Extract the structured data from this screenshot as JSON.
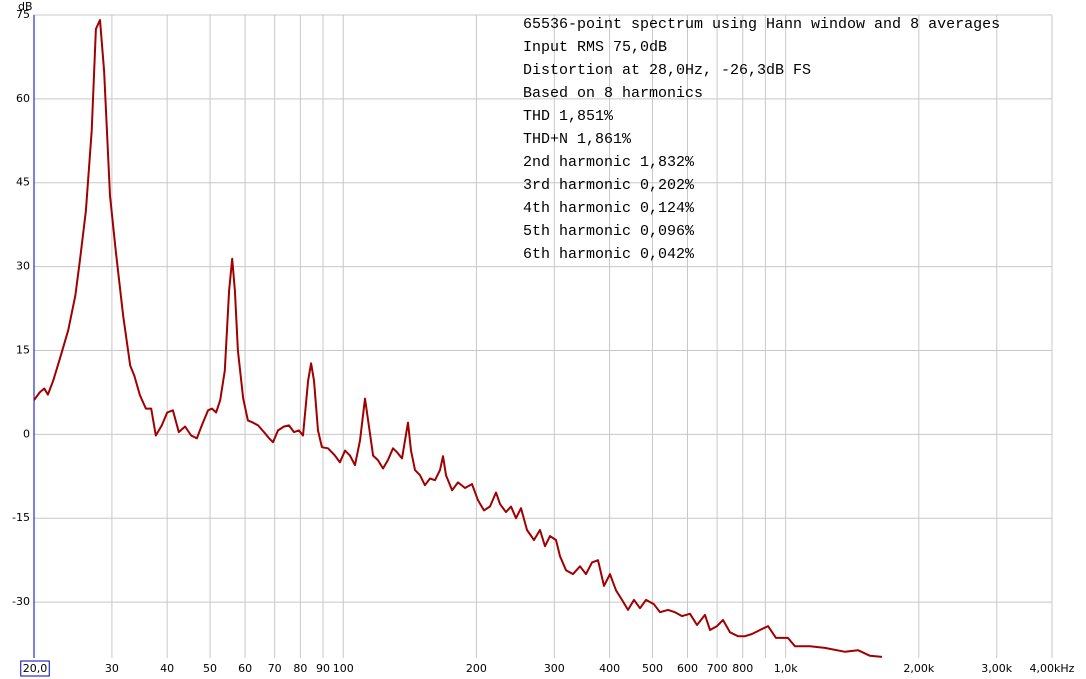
{
  "chart_data": {
    "type": "line",
    "y_axis_label": "dB",
    "annotations": [
      "65536-point spectrum using Hann window and 8 averages",
      "Input RMS 75,0dB",
      "Distortion at 28,0Hz, -26,3dB FS",
      "Based on 8 harmonics",
      "THD 1,851%",
      "THD+N 1,861%",
      "2nd harmonic 1,832%",
      "3rd harmonic 0,202%",
      "4th harmonic 0,124%",
      "5th harmonic 0,096%",
      "6th harmonic 0,042%"
    ],
    "x_scale": "log",
    "xlim": [
      20,
      4000
    ],
    "ylim": [
      -40,
      75
    ],
    "grid": true,
    "xticks": [
      {
        "value": 20,
        "label": "20,0"
      },
      30,
      40,
      50,
      60,
      70,
      80,
      90,
      100,
      200,
      300,
      400,
      500,
      600,
      700,
      800,
      {
        "value": 1000,
        "label": "1,0k"
      },
      {
        "value": 2000,
        "label": "2,00k"
      },
      {
        "value": 3000,
        "label": "3,00k"
      },
      {
        "value": 4000,
        "label": "4,00kHz"
      }
    ],
    "x_minor_gridlines": [
      900
    ],
    "yticks": [
      -30,
      -15,
      0,
      15,
      30,
      45,
      60,
      75
    ],
    "x": [
      20,
      20.6,
      21.1,
      21.5,
      22.1,
      22.9,
      23.9,
      24.8,
      25.4,
      26.2,
      27.0,
      27.6,
      28.2,
      28.8,
      29.7,
      30.6,
      31.8,
      33.0,
      33.7,
      34.7,
      35.8,
      36.8,
      37.7,
      38.9,
      40.0,
      41.2,
      42.5,
      43.9,
      45.3,
      46.7,
      47.9,
      49.5,
      50.5,
      51.6,
      52.7,
      54.0,
      55.2,
      56.1,
      56.9,
      57.8,
      59.4,
      60.9,
      62.5,
      64.2,
      66.2,
      68.0,
      69.4,
      71.2,
      73.5,
      75.4,
      77.4,
      79.4,
      81.1,
      83.3,
      84.6,
      85.9,
      87.7,
      89.5,
      92.4,
      95.8,
      98.3,
      100.9,
      103.6,
      106.3,
      109.1,
      112,
      113.8,
      116.8,
      119.8,
      123,
      126.2,
      129.6,
      132.3,
      135.8,
      140.1,
      142.3,
      145.3,
      149.1,
      153,
      157.1,
      161.2,
      165.5,
      168.1,
      170.7,
      176.2,
      181.7,
      188.5,
      195.5,
      201.7,
      208.1,
      214.7,
      221.5,
      226.2,
      233.3,
      239.4,
      245.8,
      252.3,
      260.3,
      269.9,
      278.5,
      285.8,
      293.4,
      302.7,
      309,
      318.8,
      330.7,
      342.9,
      353.8,
      365,
      376.6,
      388.6,
      400.9,
      413.6,
      426.7,
      440.3,
      454.2,
      468.7,
      483.5,
      504.1,
      520.1,
      542.2,
      562.3,
      583.1,
      608,
      630.5,
      657.3,
      674.6,
      699.7,
      721.8,
      748.6,
      780.4,
      809.4,
      839.4,
      875.1,
      912.3,
      951.1,
      1012,
      1050,
      1135,
      1227,
      1362,
      1457,
      1551,
      1651
    ],
    "series": [
      {
        "color": "#a00000",
        "values": [
          6.1,
          7.5,
          8.2,
          7.1,
          9.6,
          13.6,
          18.6,
          24.8,
          31.1,
          40,
          54.3,
          72.5,
          74.1,
          65,
          42.7,
          32.9,
          21.3,
          12.3,
          10.5,
          7.0,
          4.6,
          4.6,
          -0.2,
          1.6,
          3.9,
          4.3,
          0.4,
          1.4,
          -0.2,
          -0.7,
          1.6,
          4.3,
          4.6,
          3.9,
          6.1,
          11.4,
          25.7,
          31.4,
          25.7,
          15,
          6.4,
          2.5,
          2.1,
          1.6,
          0.4,
          -0.7,
          -1.4,
          0.7,
          1.4,
          1.6,
          0.4,
          0.7,
          -0.2,
          9.6,
          12.7,
          9.6,
          0.7,
          -2.3,
          -2.5,
          -3.8,
          -5,
          -2.9,
          -3.8,
          -5.5,
          -1.1,
          6.4,
          2.5,
          -3.8,
          -4.6,
          -6.1,
          -4.6,
          -2.5,
          -3.2,
          -4.3,
          2.1,
          -2.9,
          -6.4,
          -7.3,
          -9.1,
          -7.9,
          -8.2,
          -6.4,
          -3.9,
          -7.3,
          -10,
          -8.6,
          -9.6,
          -8.9,
          -11.8,
          -13.6,
          -12.9,
          -10.4,
          -12.5,
          -13.9,
          -12.9,
          -15,
          -13.2,
          -17.1,
          -18.9,
          -17.1,
          -20,
          -18.2,
          -18.9,
          -21.8,
          -24.3,
          -25,
          -23.6,
          -25,
          -22.9,
          -22.5,
          -27.1,
          -25,
          -27.9,
          -29.6,
          -31.4,
          -29.6,
          -31.1,
          -29.6,
          -30.4,
          -31.8,
          -31.4,
          -31.8,
          -32.5,
          -32.1,
          -34.1,
          -32.3,
          -35,
          -34.3,
          -33.2,
          -35.4,
          -36.1,
          -36.1,
          -35.7,
          -35,
          -34.3,
          -36.4,
          -36.4,
          -37.9,
          -37.9,
          -38.2,
          -38.9,
          -38.6,
          -39.6,
          -39.8
        ]
      }
    ]
  }
}
